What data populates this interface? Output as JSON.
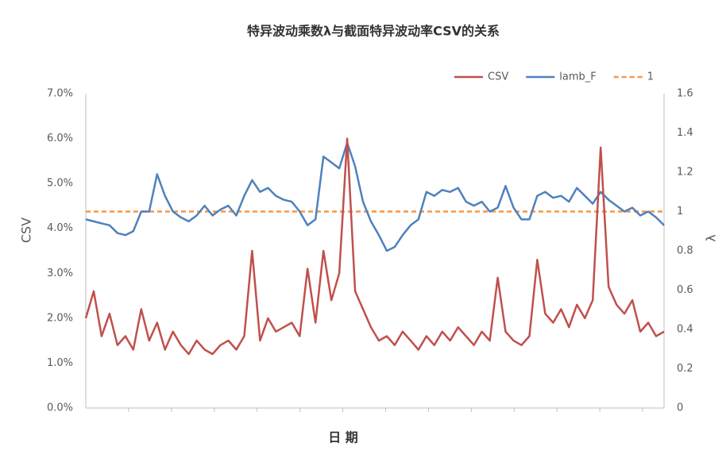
{
  "chart_data": {
    "type": "line",
    "title": "特异波动乘数λ与截面特异波动率CSV的关系",
    "xlabel": "日 期",
    "ylabel": "CSV",
    "y2label": "λ",
    "categories": [
      null,
      null,
      null,
      null,
      null,
      null,
      null,
      null,
      null,
      null,
      null,
      null,
      null,
      null,
      null,
      null,
      null,
      null,
      null,
      null,
      null,
      null,
      null,
      null,
      null,
      null,
      null,
      null,
      null,
      null,
      null,
      null,
      null,
      null,
      null,
      null,
      null,
      null,
      null,
      null,
      null,
      null,
      null,
      null,
      null,
      null,
      null,
      null,
      null,
      null,
      null,
      null,
      null,
      null,
      null,
      null,
      null,
      null,
      null,
      null,
      null,
      null,
      null,
      null,
      null,
      null,
      null,
      null,
      null,
      null,
      null,
      null,
      null,
      null
    ],
    "series": [
      {
        "name": "CSV",
        "color": "#c0504d",
        "axis": "y",
        "values": [
          2.0,
          2.6,
          1.6,
          2.1,
          1.4,
          1.6,
          1.3,
          2.2,
          1.5,
          1.9,
          1.3,
          1.7,
          1.4,
          1.2,
          1.5,
          1.3,
          1.2,
          1.4,
          1.5,
          1.3,
          1.6,
          3.5,
          1.5,
          2.0,
          1.7,
          1.8,
          1.9,
          1.6,
          3.1,
          1.9,
          3.5,
          2.4,
          3.0,
          6.0,
          2.6,
          2.2,
          1.8,
          1.5,
          1.6,
          1.4,
          1.7,
          1.5,
          1.3,
          1.6,
          1.4,
          1.7,
          1.5,
          1.8,
          1.6,
          1.4,
          1.7,
          1.5,
          2.9,
          1.7,
          1.5,
          1.4,
          1.6,
          3.3,
          2.1,
          1.9,
          2.2,
          1.8,
          2.3,
          2.0,
          2.4,
          5.8,
          2.7,
          2.3,
          2.1,
          2.4,
          1.7,
          1.9,
          1.6,
          1.7
        ]
      },
      {
        "name": "lamb_F",
        "color": "#4f81bd",
        "axis": "y2",
        "values": [
          0.96,
          0.95,
          0.94,
          0.93,
          0.89,
          0.88,
          0.9,
          1.0,
          1.0,
          1.19,
          1.08,
          1.0,
          0.97,
          0.95,
          0.98,
          1.03,
          0.98,
          1.01,
          1.03,
          0.98,
          1.08,
          1.16,
          1.1,
          1.12,
          1.08,
          1.06,
          1.05,
          1.0,
          0.93,
          0.96,
          1.28,
          1.25,
          1.22,
          1.35,
          1.23,
          1.05,
          0.95,
          0.88,
          0.8,
          0.82,
          0.88,
          0.93,
          0.96,
          1.1,
          1.08,
          1.11,
          1.1,
          1.12,
          1.05,
          1.03,
          1.05,
          1.0,
          1.02,
          1.13,
          1.02,
          0.96,
          0.96,
          1.08,
          1.1,
          1.07,
          1.08,
          1.05,
          1.12,
          1.08,
          1.04,
          1.1,
          1.06,
          1.03,
          1.0,
          1.02,
          0.98,
          1.0,
          0.97,
          0.93
        ]
      },
      {
        "name": "1",
        "color": "#f79646",
        "axis": "y2",
        "dashed": true,
        "values": [
          1,
          1,
          1,
          1,
          1,
          1,
          1,
          1,
          1,
          1,
          1,
          1,
          1,
          1,
          1,
          1,
          1,
          1,
          1,
          1,
          1,
          1,
          1,
          1,
          1,
          1,
          1,
          1,
          1,
          1,
          1,
          1,
          1,
          1,
          1,
          1,
          1,
          1,
          1,
          1,
          1,
          1,
          1,
          1,
          1,
          1,
          1,
          1,
          1,
          1,
          1,
          1,
          1,
          1,
          1,
          1,
          1,
          1,
          1,
          1,
          1,
          1,
          1,
          1,
          1,
          1,
          1,
          1,
          1,
          1,
          1,
          1,
          1,
          1
        ]
      }
    ],
    "ylim": [
      0,
      7
    ],
    "yticks": [
      {
        "value": 0,
        "label": "0.0%"
      },
      {
        "value": 1,
        "label": "1.0%"
      },
      {
        "value": 2,
        "label": "2.0%"
      },
      {
        "value": 3,
        "label": "3.0%"
      },
      {
        "value": 4,
        "label": "4.0%"
      },
      {
        "value": 5,
        "label": "5.0%"
      },
      {
        "value": 6,
        "label": "6.0%"
      },
      {
        "value": 7,
        "label": "7.0%"
      }
    ],
    "y2lim": [
      0,
      1.6
    ],
    "y2ticks": [
      0,
      0.2,
      0.4,
      0.6,
      0.8,
      1,
      1.2,
      1.4,
      1.6
    ],
    "legend": "top-right"
  }
}
